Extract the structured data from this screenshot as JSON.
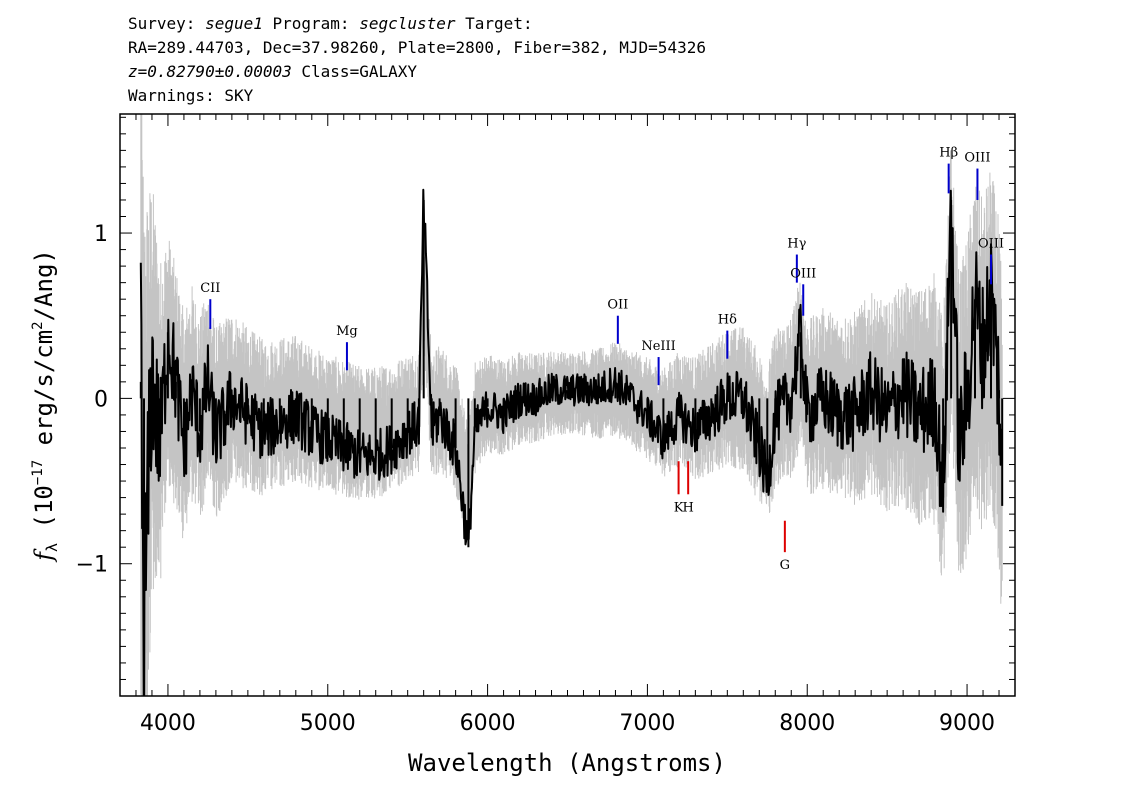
{
  "header": {
    "line1": [
      {
        "text": "Survey: ",
        "italic": false
      },
      {
        "text": "segue1",
        "italic": true
      },
      {
        "text": " Program: ",
        "italic": false
      },
      {
        "text": "segcluster",
        "italic": true
      },
      {
        "text": " Target:",
        "italic": false
      }
    ],
    "line2": "RA=289.44703, Dec=37.98260, Plate=2800, Fiber=382, MJD=54326",
    "line3": [
      {
        "text": "z=0.82790±0.00003",
        "italic": true
      },
      {
        "text": " Class=GALAXY",
        "italic": false
      }
    ],
    "line4": "Warnings: SKY"
  },
  "chart_data": {
    "type": "line",
    "title": "",
    "xlabel": "Wavelength (Angstroms)",
    "ylabel_parts": {
      "symbol": "f",
      "subscript": "λ",
      "prefix": " (10",
      "exponent": "−17",
      "middle": " erg/s/cm",
      "exponent2": "2",
      "suffix": "/Ang)"
    },
    "xlim": [
      3700,
      9300
    ],
    "ylim": [
      -1.8,
      1.72
    ],
    "x_ticks": [
      4000,
      5000,
      6000,
      7000,
      8000,
      9000
    ],
    "y_ticks": [
      {
        "value": -1,
        "label": "−1"
      },
      {
        "value": 0,
        "label": "0"
      },
      {
        "value": 1,
        "label": "1"
      }
    ],
    "grid": false,
    "legend": "none",
    "colors": {
      "flux": "#000000",
      "error": "#c4c4c4",
      "emission_marker": "#0000cc",
      "absorption_marker": "#dd0000"
    },
    "series": [
      {
        "role": "flux",
        "x": [
          3830,
          3850,
          3900,
          3950,
          4000,
          4050,
          4100,
          4150,
          4200,
          4250,
          4300,
          4400,
          4500,
          4600,
          4700,
          4800,
          4900,
          5000,
          5100,
          5200,
          5300,
          5400,
          5500,
          5570,
          5600,
          5650,
          5700,
          5800,
          5880,
          5920,
          6000,
          6100,
          6200,
          6300,
          6400,
          6500,
          6600,
          6700,
          6800,
          6900,
          7000,
          7100,
          7200,
          7300,
          7400,
          7500,
          7600,
          7700,
          7750,
          7800,
          7900,
          7960,
          8000,
          8100,
          8200,
          8300,
          8400,
          8500,
          8600,
          8700,
          8800,
          8850,
          8900,
          8950,
          9000,
          9050,
          9100,
          9150,
          9200,
          9220
        ],
        "y": [
          0.1,
          -1.4,
          0.15,
          -0.3,
          0.4,
          0.1,
          -0.3,
          0.05,
          -0.2,
          0.1,
          -0.25,
          0.0,
          -0.1,
          -0.2,
          -0.15,
          -0.1,
          -0.2,
          -0.25,
          -0.3,
          -0.35,
          -0.35,
          -0.3,
          -0.2,
          -0.15,
          1.2,
          -0.2,
          -0.1,
          -0.3,
          -0.9,
          -0.2,
          -0.05,
          -0.1,
          0.0,
          0.0,
          0.05,
          0.05,
          0.05,
          0.05,
          0.1,
          0.0,
          -0.1,
          -0.25,
          -0.1,
          -0.2,
          -0.1,
          0.0,
          0.0,
          -0.3,
          -0.5,
          -0.1,
          0.0,
          0.4,
          -0.1,
          0.0,
          -0.1,
          -0.1,
          0.05,
          -0.1,
          0.05,
          -0.1,
          0.0,
          -0.6,
          1.2,
          -0.3,
          0.0,
          0.6,
          0.3,
          0.65,
          0.05,
          -0.65
        ]
      },
      {
        "role": "error",
        "x": [
          3830,
          3900,
          4000,
          4200,
          4500,
          5000,
          5500,
          5800,
          6000,
          6500,
          7000,
          7500,
          8000,
          8500,
          8800,
          9000,
          9220
        ],
        "y": [
          1.7,
          0.9,
          0.55,
          0.45,
          0.35,
          0.3,
          0.28,
          0.28,
          0.22,
          0.18,
          0.22,
          0.3,
          0.38,
          0.45,
          0.55,
          0.7,
          0.75
        ]
      }
    ],
    "line_markers": [
      {
        "label": "CII",
        "kind": "emission",
        "x": 4265,
        "y0": 0.42,
        "y1": 0.6
      },
      {
        "label": "Mg",
        "kind": "emission",
        "x": 5120,
        "y0": 0.17,
        "y1": 0.34
      },
      {
        "label": "OII",
        "kind": "emission",
        "x": 6815,
        "y0": 0.33,
        "y1": 0.5
      },
      {
        "label": "NeIII",
        "kind": "emission",
        "x": 7070,
        "y0": 0.08,
        "y1": 0.25
      },
      {
        "label": "Hδ",
        "kind": "emission",
        "x": 7500,
        "y0": 0.24,
        "y1": 0.41
      },
      {
        "label": "Hγ",
        "kind": "emission",
        "x": 7935,
        "y0": 0.7,
        "y1": 0.87
      },
      {
        "label": "OIII",
        "kind": "emission",
        "x": 7975,
        "y0": 0.5,
        "y1": 0.69
      },
      {
        "label": "Hβ",
        "kind": "emission",
        "x": 8885,
        "y0": 1.24,
        "y1": 1.42
      },
      {
        "label": "OIII",
        "kind": "emission",
        "x": 9065,
        "y0": 1.2,
        "y1": 1.39
      },
      {
        "label": "OIII",
        "kind": "emission",
        "x": 9150,
        "y0": 0.69,
        "y1": 0.87
      },
      {
        "label": "K",
        "kind": "absorption",
        "x": 7195,
        "y0": -0.58,
        "y1": -0.38
      },
      {
        "label": "H",
        "kind": "absorption",
        "x": 7255,
        "y0": -0.58,
        "y1": -0.38
      },
      {
        "label": "G",
        "kind": "absorption",
        "x": 7860,
        "y0": -0.93,
        "y1": -0.74
      }
    ]
  }
}
